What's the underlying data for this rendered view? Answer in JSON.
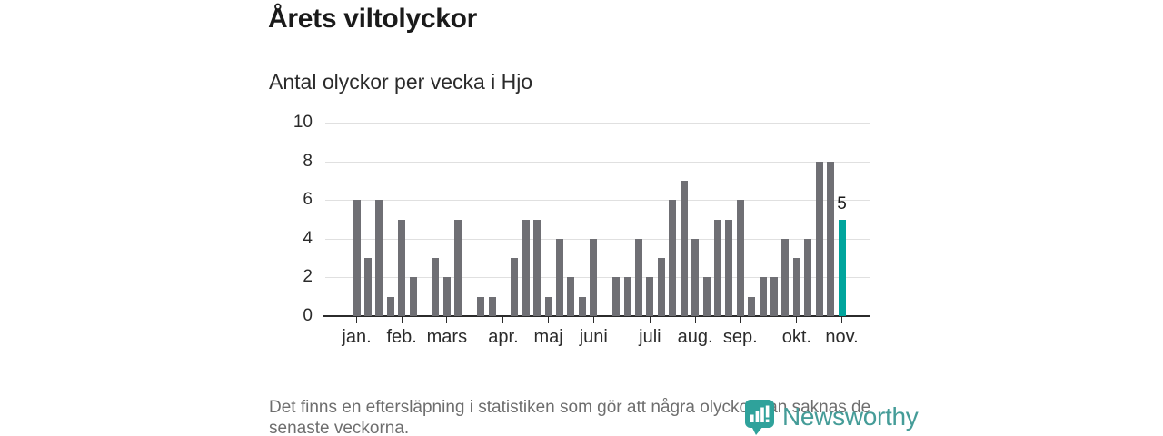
{
  "page": {
    "title": "Årets viltolyckor",
    "subtitle": "Antal olyckor per vecka i Hjo",
    "footnote_line1": "Det finns en eftersläpning i statistiken som gör att några olyckor kan saknas de",
    "footnote_line2": "senaste veckorna."
  },
  "brand": {
    "name": "Newsworthy"
  },
  "colors": {
    "bar": "#6f6f74",
    "highlight": "#00a59d",
    "grid": "#e0e0e0",
    "axis": "#2b2b2b",
    "footnote_text": "#6e6e6e",
    "logo_teal": "#2fa29b",
    "logo_text_teal": "#459c98"
  },
  "chart_data": {
    "type": "bar",
    "title": "Årets viltolyckor",
    "subtitle": "Antal olyckor per vecka i Hjo",
    "x_unit": "vecka (week of year)",
    "ylabel": "Antal olyckor",
    "ylim": [
      0,
      10
    ],
    "y_ticks": [
      0,
      2,
      4,
      6,
      8,
      10
    ],
    "grid": true,
    "legend": false,
    "values": [
      6,
      3,
      6,
      1,
      5,
      2,
      0,
      3,
      2,
      5,
      0,
      1,
      1,
      0,
      3,
      5,
      5,
      1,
      4,
      2,
      1,
      4,
      0,
      2,
      2,
      4,
      2,
      3,
      6,
      7,
      4,
      2,
      5,
      5,
      6,
      1,
      2,
      2,
      4,
      3,
      4,
      8,
      8,
      5
    ],
    "highlight_index": 43,
    "highlight_label": "5",
    "month_ticks": [
      {
        "label": "jan.",
        "week": 1
      },
      {
        "label": "feb.",
        "week": 5
      },
      {
        "label": "mars",
        "week": 9
      },
      {
        "label": "apr.",
        "week": 14
      },
      {
        "label": "maj",
        "week": 18
      },
      {
        "label": "juni",
        "week": 22
      },
      {
        "label": "juli",
        "week": 27
      },
      {
        "label": "aug.",
        "week": 31
      },
      {
        "label": "sep.",
        "week": 35
      },
      {
        "label": "okt.",
        "week": 40
      },
      {
        "label": "nov.",
        "week": 44
      }
    ]
  }
}
